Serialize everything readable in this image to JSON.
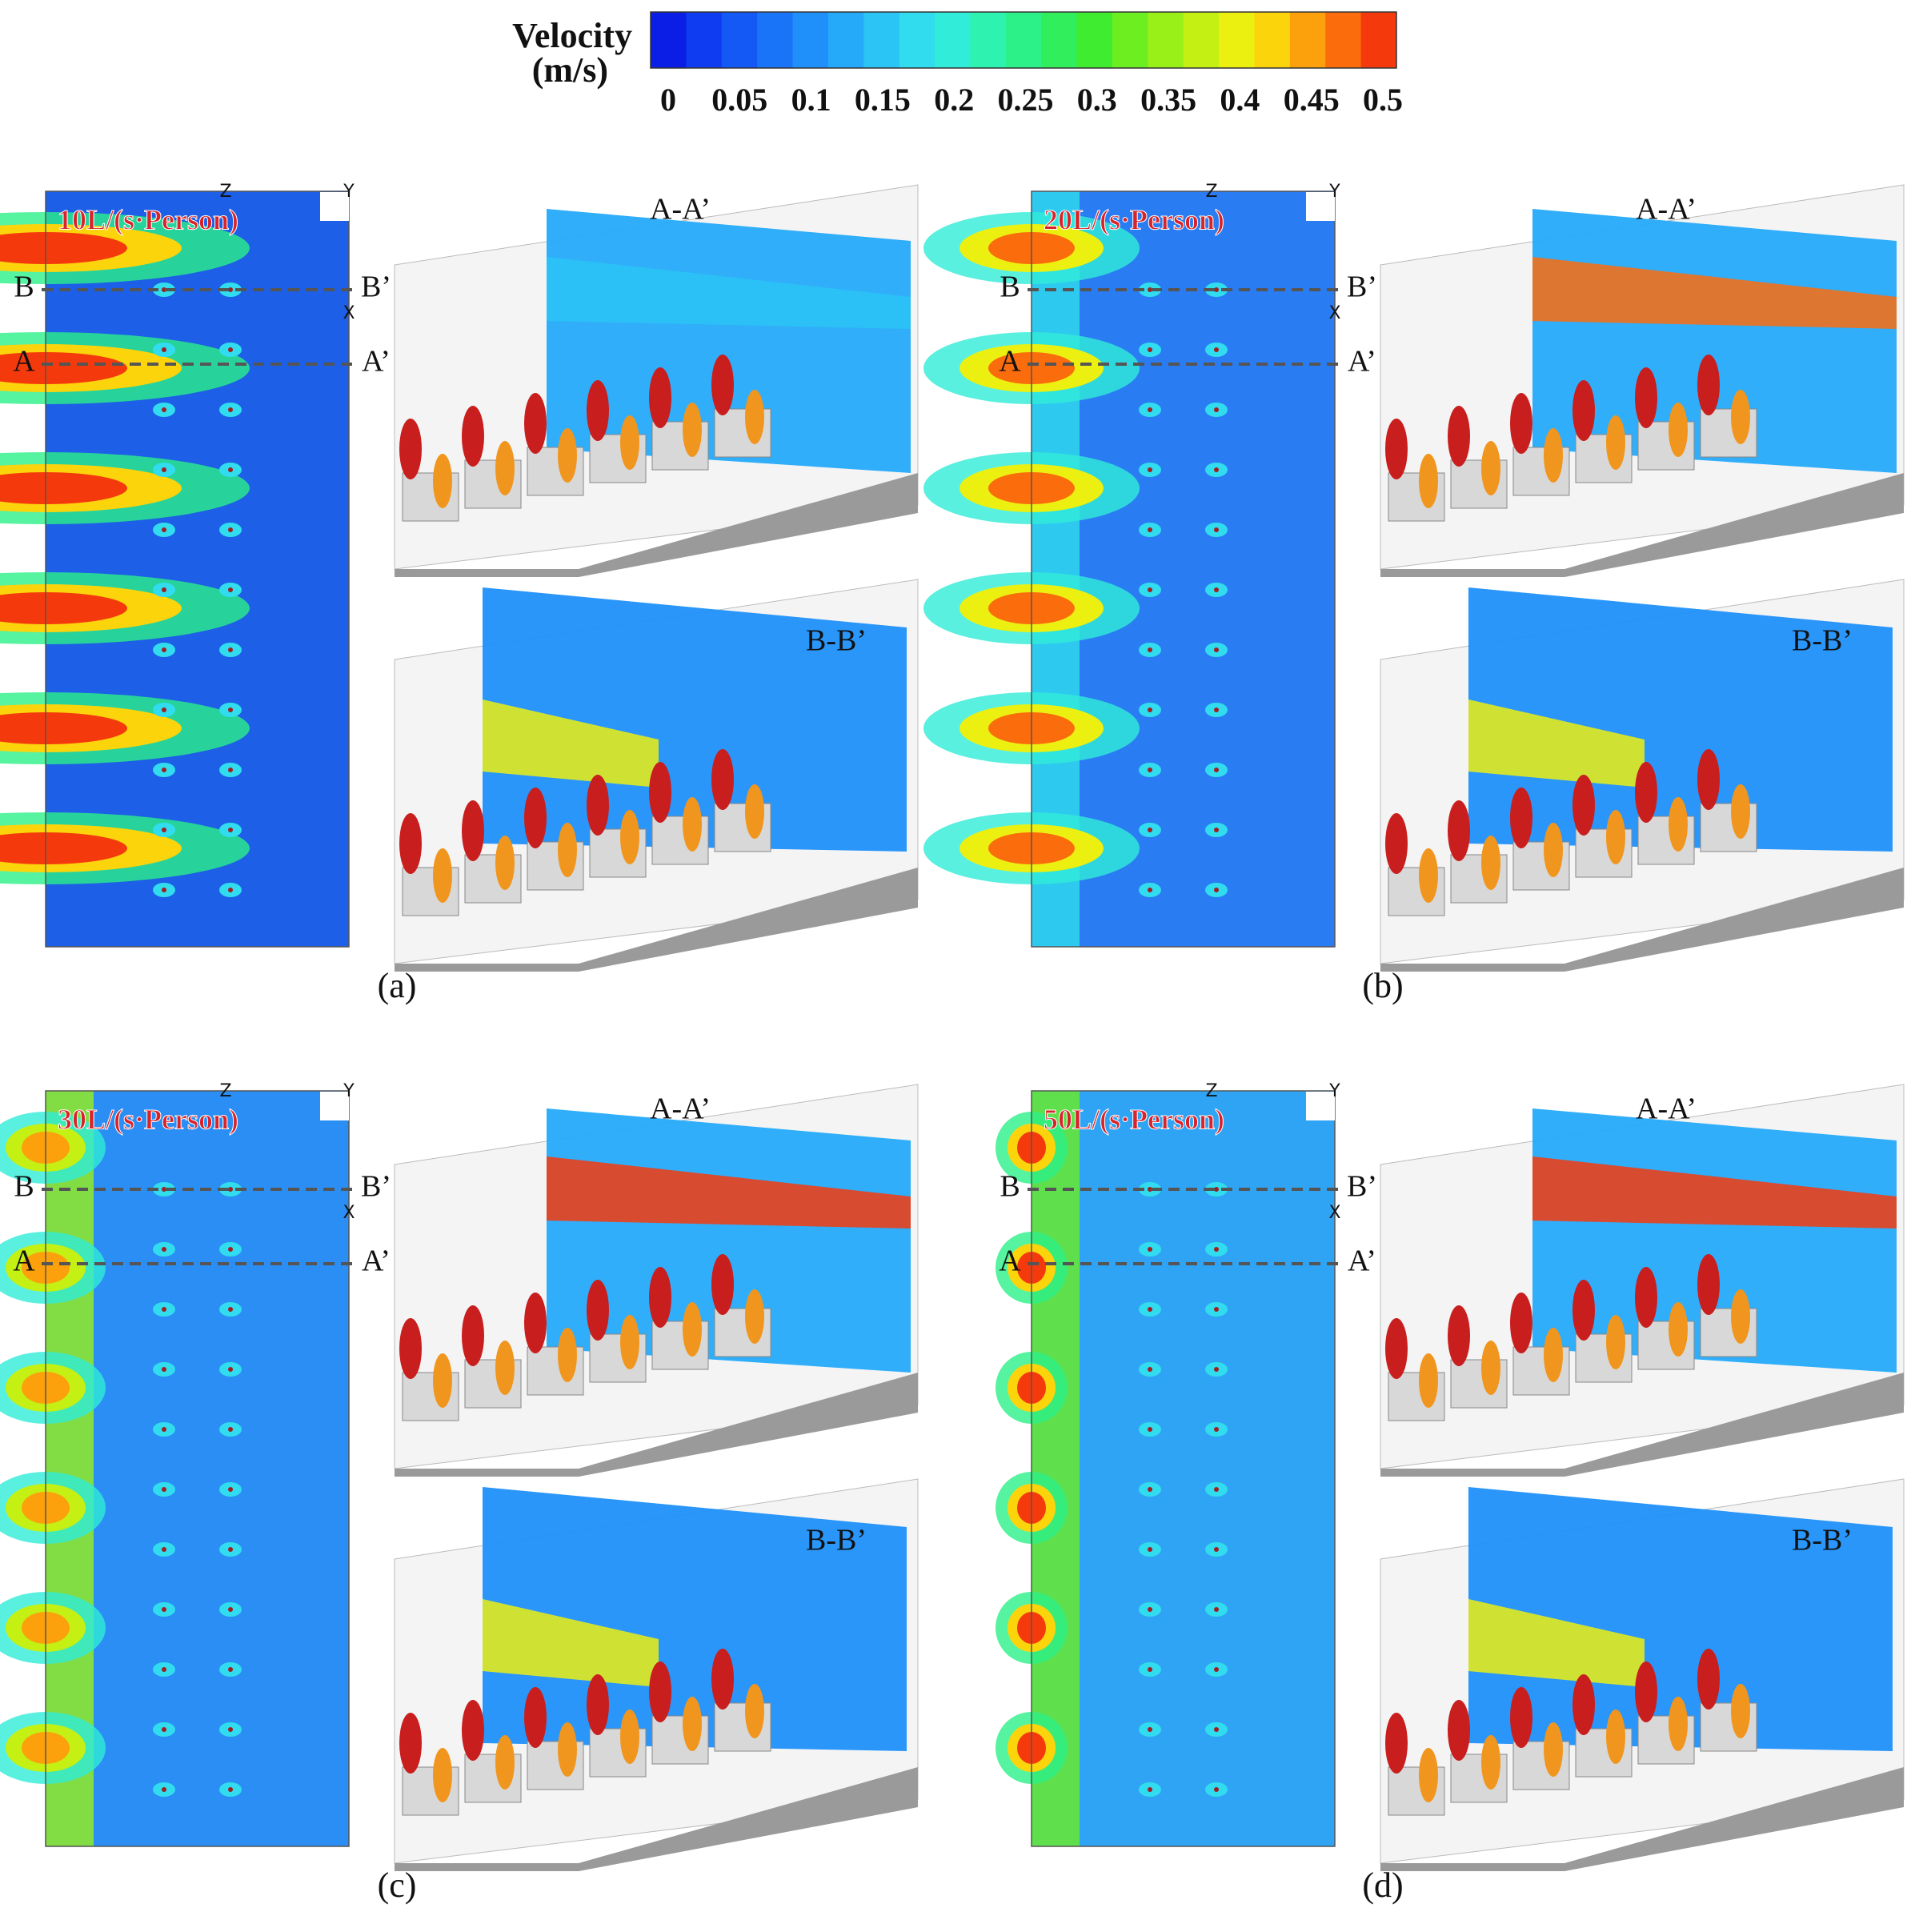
{
  "colorbar": {
    "title": "Velocity",
    "unit": "(m/s)",
    "ticks": [
      0,
      0.05,
      0.1,
      0.15,
      0.2,
      0.25,
      0.3,
      0.35,
      0.4,
      0.45,
      0.5
    ],
    "colors": [
      "#0a1ee6",
      "#0f3cf0",
      "#1458f5",
      "#1a74f8",
      "#1f90fa",
      "#25aafa",
      "#2ac4f5",
      "#30dcee",
      "#30ecd8",
      "#2ef2b0",
      "#2cf088",
      "#30ee5c",
      "#40ec30",
      "#6cee20",
      "#98f018",
      "#c4f014",
      "#ecf010",
      "#fcd40c",
      "#fca00c",
      "#fa6c0c",
      "#f43a0c"
    ]
  },
  "panels": [
    {
      "label": "(a)",
      "rate": "10L/(s·Person)",
      "axes": [
        "Z",
        "Y",
        "X"
      ],
      "line_b": [
        "B",
        "B’"
      ],
      "line_a": [
        "A",
        "A’"
      ],
      "sections": [
        "A-A’",
        "B-B’"
      ]
    },
    {
      "label": "(b)",
      "rate": "20L/(s·Person)",
      "axes": [
        "Z",
        "Y",
        "X"
      ],
      "line_b": [
        "B",
        "B’"
      ],
      "line_a": [
        "A",
        "A’"
      ],
      "sections": [
        "A-A’",
        "B-B’"
      ]
    },
    {
      "label": "(c)",
      "rate": "30L/(s·Person)",
      "axes": [
        "Z",
        "Y",
        "X"
      ],
      "line_b": [
        "B",
        "B’"
      ],
      "line_a": [
        "A",
        "A’"
      ],
      "sections": [
        "A-A’",
        "B-B’"
      ]
    },
    {
      "label": "(d)",
      "rate": "50L/(s·Person)",
      "axes": [
        "Z",
        "Y",
        "X"
      ],
      "line_b": [
        "B",
        "B’"
      ],
      "line_a": [
        "A",
        "A’"
      ],
      "sections": [
        "A-A’",
        "B-B’"
      ]
    }
  ]
}
